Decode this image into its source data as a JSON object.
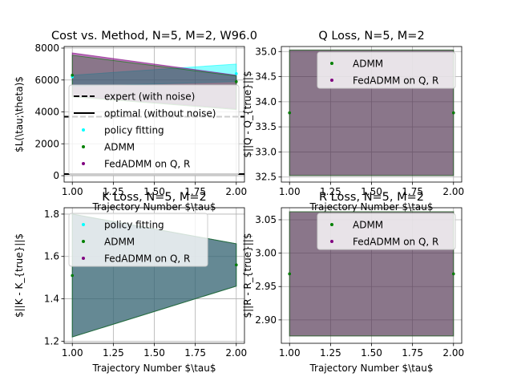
{
  "figure": {
    "colors": {
      "policy_fitting": "#00ffff",
      "admm": "#008000",
      "fedadmm": "#800080",
      "grid": "#b0b0b0",
      "expert_line": "#000000",
      "optimal_line": "#000000"
    }
  },
  "chart_data": [
    {
      "type": "line",
      "title": "Cost vs. Method, N=5, M=2, W96.0",
      "xlabel": "Trajectory Number $\\tau$",
      "ylabel": "$L(\\tau;\\theta)$",
      "xlim": [
        0.95,
        2.05
      ],
      "ylim": [
        -400,
        8100
      ],
      "xticks": [
        1.0,
        1.25,
        1.5,
        1.75,
        2.0
      ],
      "xticklabels": [
        "1.00",
        "1.25",
        "1.50",
        "1.75",
        "2.00"
      ],
      "yticks": [
        0,
        2000,
        4000,
        6000,
        8000
      ],
      "yticklabels": [
        "0",
        "2000",
        "4000",
        "6000",
        "8000"
      ],
      "grid": true,
      "legend": {
        "placement": "center-right",
        "entries": [
          {
            "label": "expert (with noise)",
            "kind": "dashed-line",
            "series": "expert_line"
          },
          {
            "label": "optimal (without noise)",
            "kind": "solid-line",
            "series": "optimal_line"
          },
          {
            "label": "policy fitting",
            "kind": "marker",
            "series": "policy_fitting"
          },
          {
            "label": "ADMM",
            "kind": "marker",
            "series": "admm"
          },
          {
            "label": "FedADMM on Q, R",
            "kind": "marker",
            "series": "fedadmm"
          }
        ]
      },
      "hlines": [
        {
          "name": "expert (with noise)",
          "y": 3700,
          "style": "dashed",
          "color_key": "expert_line"
        },
        {
          "name": "optimal (without noise)",
          "y": 100,
          "style": "solid",
          "color_key": "optimal_line"
        }
      ],
      "series": [
        {
          "name": "policy fitting",
          "color_key": "policy_fitting",
          "x": [
            1,
            2
          ],
          "mean": [
            6200,
            6400
          ],
          "lower": [
            5600,
            5900
          ],
          "upper": [
            6300,
            7000
          ],
          "alpha": 0.45
        },
        {
          "name": "FedADMM on Q, R",
          "color_key": "fedadmm",
          "x": [
            1,
            2
          ],
          "mean": [
            6300,
            5900
          ],
          "lower": [
            5000,
            4200
          ],
          "upper": [
            7700,
            6300
          ],
          "alpha": 0.55
        },
        {
          "name": "ADMM",
          "color_key": "admm",
          "x": [
            1,
            2
          ],
          "mean": [
            6300,
            5900
          ],
          "lower": [
            4950,
            4150
          ],
          "upper": [
            7550,
            6250
          ],
          "alpha": 0.25
        }
      ]
    },
    {
      "type": "line",
      "title": "Q Loss, N=5, M=2",
      "xlabel": "Trajectory Number $\\tau$",
      "ylabel": "$||Q - Q_{true}||$",
      "xlim": [
        0.95,
        2.05
      ],
      "ylim": [
        32.4,
        35.1
      ],
      "xticks": [
        1.0,
        1.25,
        1.5,
        1.75,
        2.0
      ],
      "xticklabels": [
        "1.00",
        "1.25",
        "1.50",
        "1.75",
        "2.00"
      ],
      "yticks": [
        32.5,
        33.0,
        33.5,
        34.0,
        34.5,
        35.0
      ],
      "yticklabels": [
        "32.5",
        "33.0",
        "33.5",
        "34.0",
        "34.5",
        "35.0"
      ],
      "grid": true,
      "legend": {
        "placement": "upper-right",
        "entries": [
          {
            "label": "ADMM",
            "kind": "marker",
            "series": "admm"
          },
          {
            "label": "FedADMM on Q, R",
            "kind": "marker",
            "series": "fedadmm"
          }
        ]
      },
      "series": [
        {
          "name": "FedADMM on Q, R",
          "color_key": "fedadmm",
          "x": [
            1,
            2
          ],
          "mean": [
            33.78,
            33.78
          ],
          "lower": [
            32.53,
            32.53
          ],
          "upper": [
            35.03,
            35.03
          ],
          "alpha": 0.55
        },
        {
          "name": "ADMM",
          "color_key": "admm",
          "x": [
            1,
            2
          ],
          "mean": [
            33.78,
            33.78
          ],
          "lower": [
            32.53,
            32.53
          ],
          "upper": [
            35.03,
            35.03
          ],
          "alpha": 0.25
        }
      ]
    },
    {
      "type": "line",
      "title": "K Loss, N=5, M=2",
      "xlabel": "Trajectory Number $\\tau$",
      "ylabel": "$||K - K_{true}||$",
      "xlim": [
        0.95,
        2.05
      ],
      "ylim": [
        1.19,
        1.83
      ],
      "xticks": [
        1.0,
        1.25,
        1.5,
        1.75,
        2.0
      ],
      "xticklabels": [
        "1.00",
        "1.25",
        "1.50",
        "1.75",
        "2.00"
      ],
      "yticks": [
        1.2,
        1.4,
        1.6,
        1.8
      ],
      "yticklabels": [
        "1.2",
        "1.4",
        "1.6",
        "1.8"
      ],
      "grid": true,
      "legend": {
        "placement": "upper-right",
        "entries": [
          {
            "label": "policy fitting",
            "kind": "marker",
            "series": "policy_fitting"
          },
          {
            "label": "ADMM",
            "kind": "marker",
            "series": "admm"
          },
          {
            "label": "FedADMM on Q, R",
            "kind": "marker",
            "series": "fedadmm"
          }
        ]
      },
      "series": [
        {
          "name": "policy fitting",
          "color_key": "policy_fitting",
          "x": [
            1,
            2
          ],
          "mean": [
            1.51,
            1.56
          ],
          "lower": [
            1.22,
            1.46
          ],
          "upper": [
            1.8,
            1.66
          ],
          "alpha": 0.45
        },
        {
          "name": "FedADMM on Q, R",
          "color_key": "fedadmm",
          "x": [
            1,
            2
          ],
          "mean": [
            1.51,
            1.56
          ],
          "lower": [
            1.22,
            1.46
          ],
          "upper": [
            1.8,
            1.66
          ],
          "alpha": 0.45
        },
        {
          "name": "ADMM",
          "color_key": "admm",
          "x": [
            1,
            2
          ],
          "mean": [
            1.51,
            1.56
          ],
          "lower": [
            1.22,
            1.46
          ],
          "upper": [
            1.8,
            1.66
          ],
          "alpha": 0.25
        }
      ]
    },
    {
      "type": "line",
      "title": "R Loss, N=5, M=2",
      "xlabel": "Trajectory Number $\\tau$",
      "ylabel": "$||R - R_{true}||$",
      "xlim": [
        0.95,
        2.05
      ],
      "ylim": [
        2.865,
        3.068
      ],
      "xticks": [
        1.0,
        1.25,
        1.5,
        1.75,
        2.0
      ],
      "xticklabels": [
        "1.00",
        "1.25",
        "1.50",
        "1.75",
        "2.00"
      ],
      "yticks": [
        2.9,
        2.95,
        3.0,
        3.05
      ],
      "yticklabels": [
        "2.90",
        "2.95",
        "3.00",
        "3.05"
      ],
      "grid": true,
      "legend": {
        "placement": "upper-right",
        "entries": [
          {
            "label": "ADMM",
            "kind": "marker",
            "series": "admm"
          },
          {
            "label": "FedADMM on Q, R",
            "kind": "marker",
            "series": "fedadmm"
          }
        ]
      },
      "series": [
        {
          "name": "FedADMM on Q, R",
          "color_key": "fedadmm",
          "x": [
            1,
            2
          ],
          "mean": [
            2.969,
            2.969
          ],
          "lower": [
            2.876,
            2.876
          ],
          "upper": [
            3.062,
            3.062
          ],
          "alpha": 0.55
        },
        {
          "name": "ADMM",
          "color_key": "admm",
          "x": [
            1,
            2
          ],
          "mean": [
            2.969,
            2.969
          ],
          "lower": [
            2.876,
            2.876
          ],
          "upper": [
            3.062,
            3.062
          ],
          "alpha": 0.25
        }
      ]
    }
  ]
}
